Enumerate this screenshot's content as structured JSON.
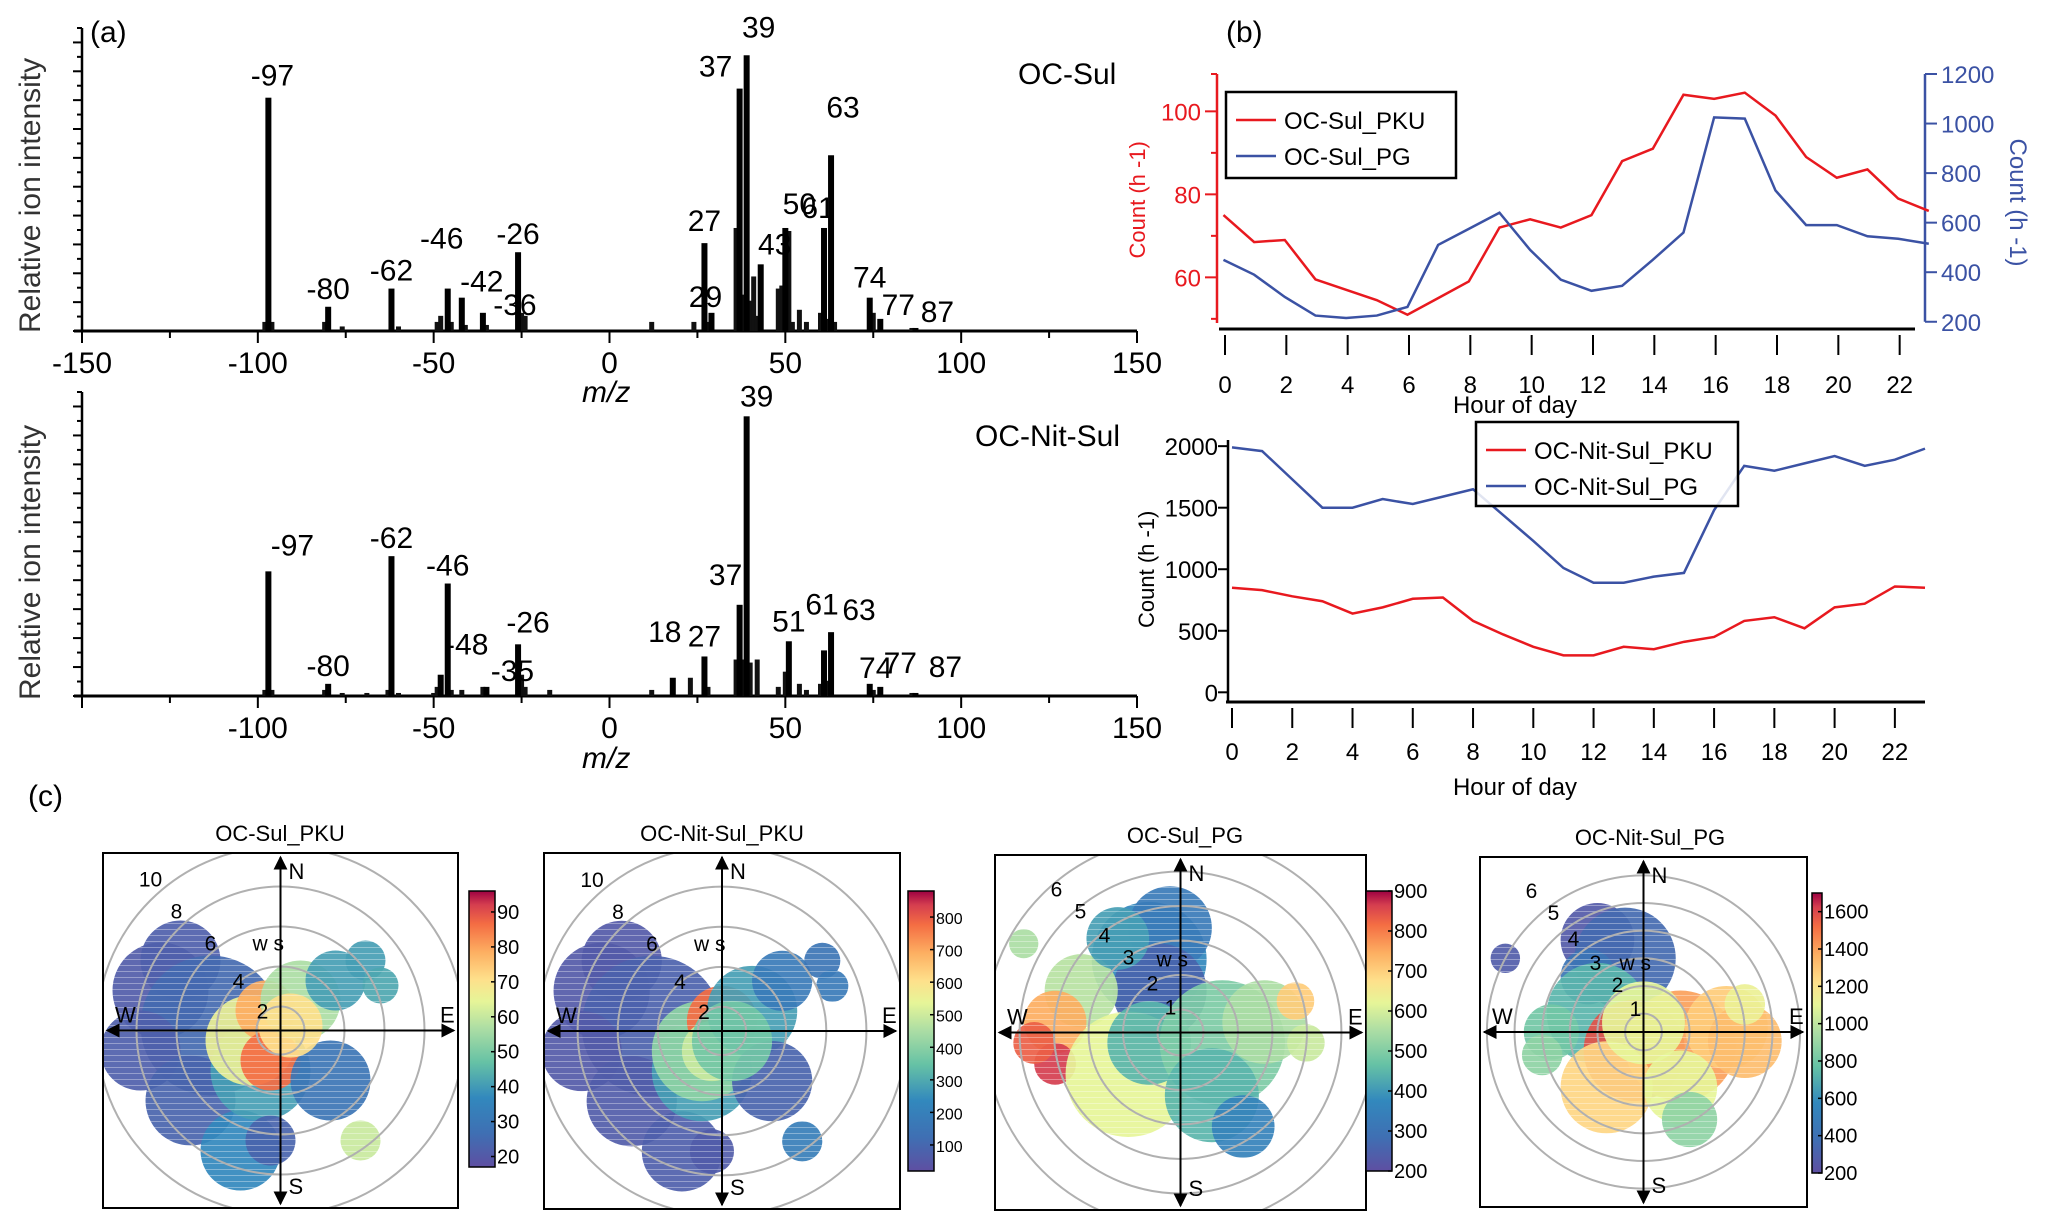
{
  "panel_labels": {
    "a": "(a)",
    "b": "(b)",
    "c": "(c)"
  },
  "chart_data": [
    {
      "id": "spectrum-oc-sul",
      "type": "bar",
      "title": "OC-Sul",
      "xlabel": "m/z",
      "ylabel": "Relative ion intensity",
      "xlim": [
        -150,
        150
      ],
      "ylim": [
        0,
        1
      ],
      "xticks": [
        -150,
        -100,
        -50,
        0,
        50,
        100,
        150
      ],
      "peaks": [
        {
          "mz": -97,
          "value": 0.77,
          "label": "-97"
        },
        {
          "mz": -80,
          "value": 0.08,
          "label": "-80"
        },
        {
          "mz": -62,
          "value": 0.14,
          "label": "-62"
        },
        {
          "mz": -46,
          "value": 0.14,
          "label": "-46"
        },
        {
          "mz": -42,
          "value": 0.11,
          "label": "-42"
        },
        {
          "mz": -36,
          "value": 0.06,
          "label": "-36"
        },
        {
          "mz": -26,
          "value": 0.26,
          "label": "-26"
        },
        {
          "mz": 27,
          "value": 0.29,
          "label": "27"
        },
        {
          "mz": 29,
          "value": 0.06,
          "label": "29"
        },
        {
          "mz": 37,
          "value": 0.8,
          "label": "37"
        },
        {
          "mz": 39,
          "value": 0.91,
          "label": "39"
        },
        {
          "mz": 43,
          "value": 0.22,
          "label": "43"
        },
        {
          "mz": 50,
          "value": 0.34,
          "label": "50"
        },
        {
          "mz": 61,
          "value": 0.34,
          "label": "61"
        },
        {
          "mz": 63,
          "value": 0.58,
          "label": "63"
        },
        {
          "mz": 74,
          "value": 0.11,
          "label": "74"
        },
        {
          "mz": 77,
          "value": 0.04,
          "label": "77"
        },
        {
          "mz": 87,
          "value": 0.01,
          "label": "87"
        }
      ],
      "minor_peaks": [
        {
          "mz": -98,
          "value": 0.03
        },
        {
          "mz": -96,
          "value": 0.03
        },
        {
          "mz": -81,
          "value": 0.03
        },
        {
          "mz": -76,
          "value": 0.015
        },
        {
          "mz": -60,
          "value": 0.015
        },
        {
          "mz": -48,
          "value": 0.05
        },
        {
          "mz": -49,
          "value": 0.03
        },
        {
          "mz": -45,
          "value": 0.03
        },
        {
          "mz": -41,
          "value": 0.02
        },
        {
          "mz": -35,
          "value": 0.02
        },
        {
          "mz": -25,
          "value": 0.06
        },
        {
          "mz": -24,
          "value": 0.05
        },
        {
          "mz": 12,
          "value": 0.03
        },
        {
          "mz": 24,
          "value": 0.03
        },
        {
          "mz": 28,
          "value": 0.03
        },
        {
          "mz": 36,
          "value": 0.34
        },
        {
          "mz": 38,
          "value": 0.12
        },
        {
          "mz": 40,
          "value": 0.1
        },
        {
          "mz": 41,
          "value": 0.18
        },
        {
          "mz": 42,
          "value": 0.05
        },
        {
          "mz": 48,
          "value": 0.14
        },
        {
          "mz": 49,
          "value": 0.15
        },
        {
          "mz": 51,
          "value": 0.33
        },
        {
          "mz": 52,
          "value": 0.03
        },
        {
          "mz": 54,
          "value": 0.07
        },
        {
          "mz": 56,
          "value": 0.03
        },
        {
          "mz": 60,
          "value": 0.06
        },
        {
          "mz": 62,
          "value": 0.04
        },
        {
          "mz": 64,
          "value": 0.03
        },
        {
          "mz": 75,
          "value": 0.06
        },
        {
          "mz": 86,
          "value": 0.01
        }
      ]
    },
    {
      "id": "spectrum-oc-nit-sul",
      "type": "bar",
      "title": "OC-Nit-Sul",
      "xlabel": "m/z",
      "ylabel": "Relative ion intensity",
      "xlim": [
        -150,
        150
      ],
      "ylim": [
        0,
        1
      ],
      "xticks": [
        -100,
        -50,
        0,
        50,
        100,
        150
      ],
      "peaks": [
        {
          "mz": -97,
          "value": 0.41,
          "label": "-97"
        },
        {
          "mz": -80,
          "value": 0.04,
          "label": "-80"
        },
        {
          "mz": -62,
          "value": 0.46,
          "label": "-62"
        },
        {
          "mz": -48,
          "value": 0.07,
          "label": "-48"
        },
        {
          "mz": -46,
          "value": 0.37,
          "label": "-46"
        },
        {
          "mz": -35,
          "value": 0.03,
          "label": "-35"
        },
        {
          "mz": -26,
          "value": 0.17,
          "label": "-26"
        },
        {
          "mz": 18,
          "value": 0.06,
          "label": "18"
        },
        {
          "mz": 27,
          "value": 0.13,
          "label": "27"
        },
        {
          "mz": 37,
          "value": 0.3,
          "label": "37"
        },
        {
          "mz": 39,
          "value": 0.92,
          "label": "39"
        },
        {
          "mz": 51,
          "value": 0.18,
          "label": "51"
        },
        {
          "mz": 61,
          "value": 0.15,
          "label": "61"
        },
        {
          "mz": 63,
          "value": 0.21,
          "label": "63"
        },
        {
          "mz": 74,
          "value": 0.04,
          "label": "74"
        },
        {
          "mz": 77,
          "value": 0.03,
          "label": "77"
        },
        {
          "mz": 87,
          "value": 0.01,
          "label": "87"
        }
      ],
      "minor_peaks": [
        {
          "mz": -98,
          "value": 0.02
        },
        {
          "mz": -96,
          "value": 0.02
        },
        {
          "mz": -81,
          "value": 0.02
        },
        {
          "mz": -76,
          "value": 0.01
        },
        {
          "mz": -69,
          "value": 0.01
        },
        {
          "mz": -63,
          "value": 0.02
        },
        {
          "mz": -60,
          "value": 0.01
        },
        {
          "mz": -50,
          "value": 0.01
        },
        {
          "mz": -49,
          "value": 0.03
        },
        {
          "mz": -45,
          "value": 0.02
        },
        {
          "mz": -42,
          "value": 0.02
        },
        {
          "mz": -36,
          "value": 0.03
        },
        {
          "mz": -25,
          "value": 0.07
        },
        {
          "mz": -24,
          "value": 0.03
        },
        {
          "mz": -17,
          "value": 0.02
        },
        {
          "mz": 12,
          "value": 0.02
        },
        {
          "mz": 23,
          "value": 0.06
        },
        {
          "mz": 28,
          "value": 0.03
        },
        {
          "mz": 36,
          "value": 0.12
        },
        {
          "mz": 38,
          "value": 0.12
        },
        {
          "mz": 40,
          "value": 0.11
        },
        {
          "mz": 42,
          "value": 0.12
        },
        {
          "mz": 48,
          "value": 0.03
        },
        {
          "mz": 50,
          "value": 0.08
        },
        {
          "mz": 54,
          "value": 0.04
        },
        {
          "mz": 56,
          "value": 0.02
        },
        {
          "mz": 60,
          "value": 0.04
        },
        {
          "mz": 62,
          "value": 0.05
        },
        {
          "mz": 75,
          "value": 0.02
        },
        {
          "mz": 86,
          "value": 0.01
        }
      ]
    },
    {
      "id": "diurnal-oc-sul",
      "type": "line",
      "xlabel": "Hour of day",
      "x": [
        0,
        1,
        2,
        3,
        4,
        5,
        6,
        7,
        8,
        9,
        10,
        11,
        12,
        13,
        14,
        15,
        16,
        17,
        18,
        19,
        20,
        21,
        22,
        23
      ],
      "xticks": [
        0,
        2,
        4,
        6,
        8,
        10,
        12,
        14,
        16,
        18,
        20,
        22
      ],
      "legend_position": "top-left",
      "axes": {
        "left": {
          "label": "Count (h -1)",
          "ylim": [
            49,
            109
          ],
          "ticks": [
            60,
            80,
            100
          ],
          "color": "#e8191f"
        },
        "right": {
          "label": "Count (h -1)",
          "ylim": [
            195,
            1200
          ],
          "ticks": [
            200,
            400,
            600,
            800,
            1000,
            1200
          ],
          "color": "#3b52a4"
        }
      },
      "series": [
        {
          "name": "OC-Sul_PKU",
          "axis": "left",
          "color": "#e8191f",
          "values": [
            75,
            68.5,
            69,
            59.5,
            57,
            54.5,
            51,
            55,
            59,
            72,
            74,
            72,
            75,
            88,
            91,
            104,
            103,
            104.5,
            99,
            89,
            84,
            86,
            79,
            76
          ]
        },
        {
          "name": "OC-Sul_PG",
          "axis": "right",
          "color": "#3b52a4",
          "values": [
            450,
            390,
            300,
            225,
            215,
            225,
            260,
            510,
            575,
            640,
            490,
            370,
            325,
            345,
            450,
            560,
            1025,
            1020,
            730,
            590,
            590,
            545,
            535,
            515
          ]
        }
      ]
    },
    {
      "id": "diurnal-oc-nit-sul",
      "type": "line",
      "xlabel": "Hour of day",
      "ylabel": "Count (h -1)",
      "x": [
        0,
        1,
        2,
        3,
        4,
        5,
        6,
        7,
        8,
        9,
        10,
        11,
        12,
        13,
        14,
        15,
        16,
        17,
        18,
        19,
        20,
        21,
        22,
        23
      ],
      "xticks": [
        0,
        2,
        4,
        6,
        8,
        10,
        12,
        14,
        16,
        18,
        20,
        22
      ],
      "ylim": [
        -30,
        2050
      ],
      "yticks": [
        0,
        500,
        1000,
        1500,
        2000
      ],
      "legend_position": "top-center",
      "series": [
        {
          "name": "OC-Nit-Sul_PKU",
          "color": "#e8191f",
          "values": [
            850,
            830,
            780,
            740,
            640,
            690,
            760,
            770,
            580,
            470,
            370,
            300,
            300,
            370,
            350,
            410,
            450,
            580,
            610,
            520,
            690,
            720,
            860,
            850
          ]
        },
        {
          "name": "OC-Nit-Sul_PG",
          "color": "#3b52a4",
          "values": [
            1990,
            1960,
            1730,
            1500,
            1500,
            1570,
            1530,
            1590,
            1650,
            1440,
            1230,
            1010,
            890,
            890,
            940,
            970,
            1480,
            1840,
            1800,
            1860,
            1920,
            1840,
            1890,
            1980
          ]
        }
      ]
    },
    {
      "id": "polar-oc-sul-pku",
      "type": "heatmap",
      "title": "OC-Sul_PKU",
      "compass": [
        "N",
        "E",
        "S",
        "W"
      ],
      "radial_unit": "w s",
      "radial_labels": [
        "2",
        "4",
        "6",
        "8",
        "10"
      ],
      "colorbar_ticks": [
        20,
        30,
        40,
        50,
        60,
        70,
        80,
        90
      ],
      "colorbar_range": [
        17,
        96
      ]
    },
    {
      "id": "polar-oc-nit-sul-pku",
      "type": "heatmap",
      "title": "OC-Nit-Sul_PKU",
      "compass": [
        "N",
        "E",
        "S",
        "W"
      ],
      "radial_unit": "w s",
      "radial_labels": [
        "2",
        "4",
        "6",
        "8",
        "10"
      ],
      "colorbar_ticks": [
        100,
        200,
        300,
        400,
        500,
        600,
        700,
        800
      ],
      "colorbar_range": [
        20,
        880
      ]
    },
    {
      "id": "polar-oc-sul-pg",
      "type": "heatmap",
      "title": "OC-Sul_PG",
      "compass": [
        "N",
        "E",
        "S",
        "W"
      ],
      "radial_unit": "w s",
      "radial_labels": [
        "1",
        "2",
        "3",
        "4",
        "5",
        "6"
      ],
      "colorbar_ticks": [
        200,
        300,
        400,
        500,
        600,
        700,
        800,
        900
      ],
      "colorbar_range": [
        200,
        900
      ]
    },
    {
      "id": "polar-oc-nit-sul-pg",
      "type": "heatmap",
      "title": "OC-Nit-Sul_PG",
      "compass": [
        "N",
        "E",
        "S",
        "W"
      ],
      "radial_unit": "w s",
      "radial_labels": [
        "1",
        "2",
        "3",
        "4",
        "5",
        "6"
      ],
      "colorbar_ticks": [
        200,
        400,
        600,
        800,
        1000,
        1200,
        1400,
        1600
      ],
      "colorbar_range": [
        200,
        1700
      ]
    }
  ]
}
